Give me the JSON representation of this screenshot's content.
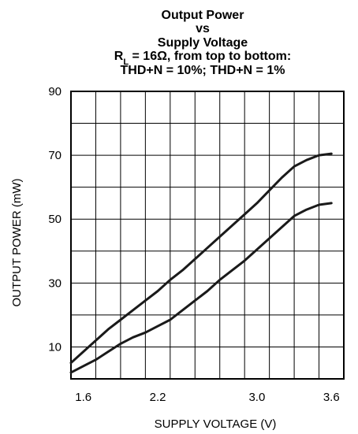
{
  "chart_data": {
    "type": "line",
    "title_lines": [
      {
        "main": "Output Power",
        "sub": "",
        "rest": ""
      },
      {
        "main": "vs",
        "sub": "",
        "rest": ""
      },
      {
        "main": "Supply Voltage",
        "sub": "",
        "rest": ""
      },
      {
        "main": "R",
        "sub": "L",
        "rest": " = 16Ω, from top to bottom:"
      },
      {
        "main": "THD+N = 10%; THD+N = 1%",
        "sub": "",
        "rest": ""
      }
    ],
    "xlabel": "SUPPLY VOLTAGE (V)",
    "ylabel": "OUTPUT POWER (mW)",
    "xlim": [
      1.5,
      3.7
    ],
    "ylim": [
      0,
      90
    ],
    "x_ticks": [
      1.6,
      2.2,
      3.0,
      3.6
    ],
    "x_tick_labels": [
      "1.6",
      "2.2",
      "3.0",
      "3.6"
    ],
    "y_ticks": [
      10,
      30,
      50,
      70,
      90
    ],
    "y_tick_labels": [
      "10",
      "30",
      "50",
      "70",
      "90"
    ],
    "grid": true,
    "series": [
      {
        "x": [
          1.5,
          1.6,
          1.7,
          1.8,
          1.9,
          2.0,
          2.1,
          2.2,
          2.3,
          2.4,
          2.5,
          2.6,
          2.7,
          2.8,
          2.9,
          3.0,
          3.1,
          3.2,
          3.3,
          3.4,
          3.5,
          3.6
        ],
        "y": [
          5,
          8.5,
          12,
          15.5,
          18.5,
          21.5,
          24.5,
          27.5,
          31,
          34,
          37.5,
          41,
          44.5,
          48,
          51.5,
          55,
          59,
          63,
          66.5,
          68.5,
          70,
          70.5
        ]
      },
      {
        "x": [
          1.5,
          1.6,
          1.7,
          1.8,
          1.9,
          2.0,
          2.1,
          2.2,
          2.3,
          2.4,
          2.5,
          2.6,
          2.7,
          2.8,
          2.9,
          3.0,
          3.1,
          3.2,
          3.3,
          3.4,
          3.5,
          3.6
        ],
        "y": [
          2,
          4,
          6,
          8.5,
          11,
          13,
          14.5,
          16.5,
          18.5,
          21.5,
          24.5,
          27.5,
          31,
          34,
          37,
          40.5,
          44,
          47.5,
          51,
          53,
          54.5,
          55
        ]
      }
    ]
  }
}
